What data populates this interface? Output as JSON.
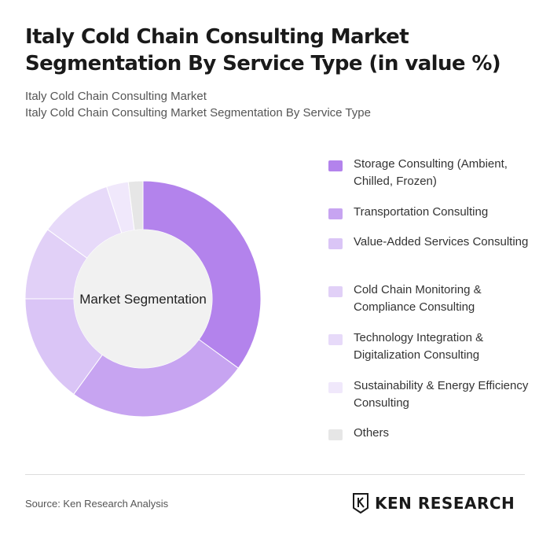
{
  "header": {
    "title": "Italy Cold Chain Consulting Market Segmentation By Service Type (in value %)",
    "subtitle_1": "Italy Cold Chain Consulting Market",
    "subtitle_2": "Italy Cold Chain Consulting Market Segmentation By Service Type"
  },
  "chart_data": {
    "type": "pie",
    "center_label": "Market Segmentation",
    "categories": [
      "Storage Consulting (Ambient, Chilled, Frozen)",
      "Transportation Consulting",
      "Value-Added Services Consulting",
      "Cold Chain Monitoring & Compliance Consulting",
      "Technology Integration & Digitalization Consulting",
      "Sustainability & Energy Efficiency Consulting",
      "Others"
    ],
    "values": [
      35,
      25,
      15,
      10,
      10,
      3,
      2
    ],
    "colors": [
      "#b383ec",
      "#c7a4f1",
      "#dac5f6",
      "#e1d0f7",
      "#e7daf9",
      "#f0e8fb",
      "#e6e6e6"
    ],
    "legend_placement": "right"
  },
  "footer": {
    "source": "Source: Ken Research Analysis",
    "brand": "KEN RESEARCH"
  }
}
